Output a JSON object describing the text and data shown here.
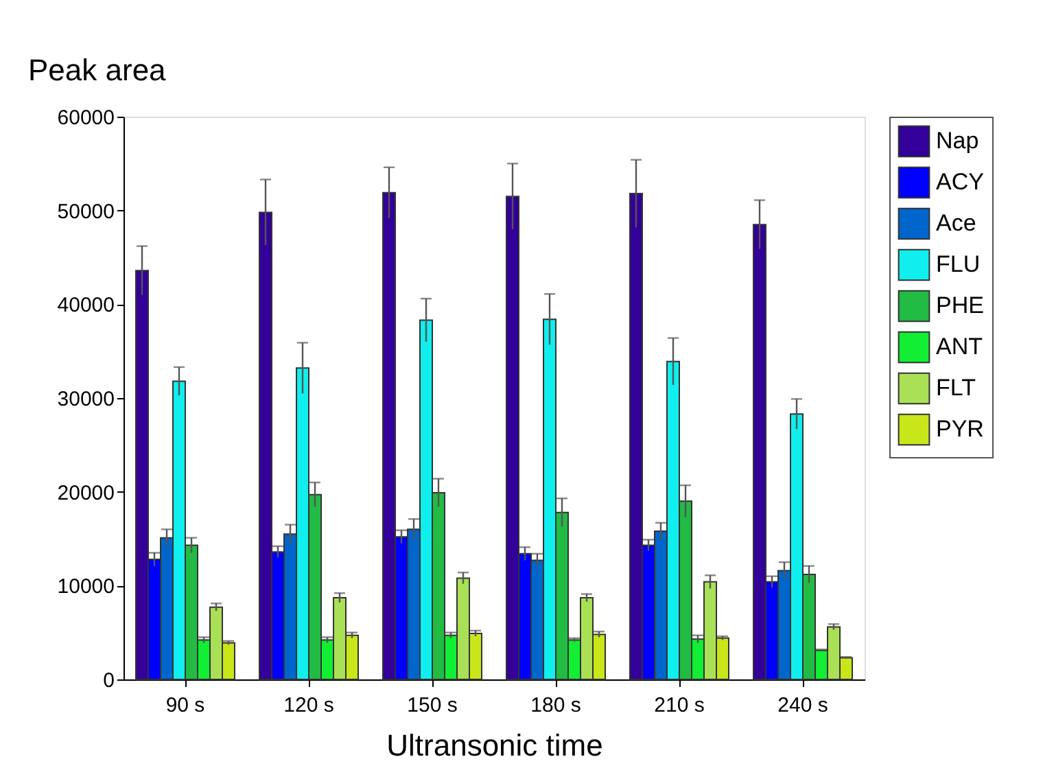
{
  "chart_data": {
    "type": "bar",
    "ylabel": "Peak area",
    "xlabel": "Ultransonic time",
    "categories": [
      "90 s",
      "120 s",
      "150 s",
      "180 s",
      "210 s",
      "240 s"
    ],
    "series": [
      {
        "name": "Nap",
        "color": "#330099",
        "values": [
          43600,
          49800,
          51900,
          51500,
          51800,
          48500
        ],
        "errors": [
          2600,
          3500,
          2700,
          3500,
          3600,
          2600
        ]
      },
      {
        "name": "ACY",
        "color": "#0000ff",
        "values": [
          12800,
          13600,
          15200,
          13400,
          14300,
          10400
        ],
        "errors": [
          700,
          600,
          700,
          700,
          600,
          600
        ]
      },
      {
        "name": "Ace",
        "color": "#0066cc",
        "values": [
          15100,
          15500,
          16000,
          12700,
          15800,
          11600
        ],
        "errors": [
          900,
          1000,
          1100,
          700,
          900,
          900
        ]
      },
      {
        "name": "FLU",
        "color": "#11eeee",
        "values": [
          31800,
          33200,
          38300,
          38400,
          33900,
          28300
        ],
        "errors": [
          1500,
          2700,
          2300,
          2700,
          2500,
          1600
        ]
      },
      {
        "name": "PHE",
        "color": "#22bb44",
        "values": [
          14300,
          19700,
          19900,
          17800,
          19000,
          11200
        ],
        "errors": [
          800,
          1300,
          1500,
          1500,
          1700,
          900
        ]
      },
      {
        "name": "ANT",
        "color": "#11ee33",
        "values": [
          4200,
          4200,
          4700,
          4200,
          4300,
          3100
        ],
        "errors": [
          300,
          300,
          300,
          200,
          400,
          100
        ]
      },
      {
        "name": "FLT",
        "color": "#aae055",
        "values": [
          7700,
          8700,
          10800,
          8700,
          10400,
          5600
        ],
        "errors": [
          400,
          500,
          600,
          400,
          700,
          300
        ]
      },
      {
        "name": "PYR",
        "color": "#c8e619",
        "values": [
          3900,
          4700,
          4900,
          4800,
          4400,
          2300
        ],
        "errors": [
          200,
          300,
          300,
          300,
          200,
          100
        ]
      }
    ],
    "ylim": [
      0,
      60000
    ],
    "yticks": [
      0,
      10000,
      20000,
      30000,
      40000,
      50000,
      60000
    ],
    "grid": false,
    "legend": "top right"
  }
}
